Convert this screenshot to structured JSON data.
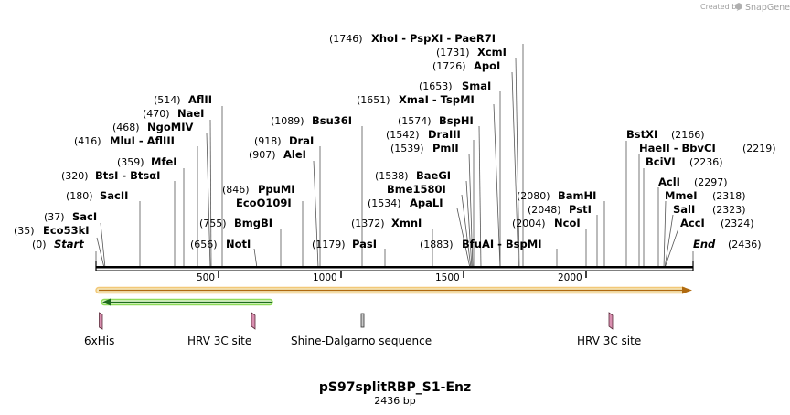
{
  "credit": {
    "prefix": "Created by",
    "brand": "SnapGene"
  },
  "plasmid": {
    "name": "pS97splitRBP_S1-Enz",
    "size_label": "2436 bp",
    "length": 2436
  },
  "axis": {
    "ticks": [
      500,
      1000,
      1500,
      2000
    ]
  },
  "sites": [
    {
      "pos": "(0)",
      "name": "Start",
      "bp": 0,
      "italic": true
    },
    {
      "pos": "(35)",
      "name": "Eco53kI",
      "bp": 35
    },
    {
      "pos": "(37)",
      "name": "SacI",
      "bp": 37
    },
    {
      "pos": "(180)",
      "name": "SacII",
      "bp": 180
    },
    {
      "pos": "(320)",
      "name": "BtsI - BtsαI",
      "bp": 320
    },
    {
      "pos": "(359)",
      "name": "MfeI",
      "bp": 359
    },
    {
      "pos": "(416)",
      "name": "MluI - AflIII",
      "bp": 416
    },
    {
      "pos": "(468)",
      "name": "NgoMIV",
      "bp": 468
    },
    {
      "pos": "(470)",
      "name": "NaeI",
      "bp": 470
    },
    {
      "pos": "(514)",
      "name": "AflII",
      "bp": 514
    },
    {
      "pos": "(656)",
      "name": "NotI",
      "bp": 656
    },
    {
      "pos": "(755)",
      "name": "BmgBI",
      "bp": 755
    },
    {
      "pos": "(846)",
      "name": "PpuMI",
      "bp": 846
    },
    {
      "pos": "",
      "name": "EcoO109I",
      "bp": 846
    },
    {
      "pos": "(907)",
      "name": "AleI",
      "bp": 907
    },
    {
      "pos": "(918)",
      "name": "DraI",
      "bp": 918
    },
    {
      "pos": "(1089)",
      "name": "Bsu36I",
      "bp": 1089
    },
    {
      "pos": "(1179)",
      "name": "PasI",
      "bp": 1179
    },
    {
      "pos": "(1372)",
      "name": "XmnI",
      "bp": 1372
    },
    {
      "pos": "(1534)",
      "name": "ApaLI",
      "bp": 1534
    },
    {
      "pos": "",
      "name": "Bme1580I",
      "bp": 1538
    },
    {
      "pos": "(1538)",
      "name": "BaeGI",
      "bp": 1538
    },
    {
      "pos": "(1539)",
      "name": "PmlI",
      "bp": 1539
    },
    {
      "pos": "(1542)",
      "name": "DraIII",
      "bp": 1542
    },
    {
      "pos": "(1574)",
      "name": "BspHI",
      "bp": 1574
    },
    {
      "pos": "(1651)",
      "name": "XmaI - TspMI",
      "bp": 1651
    },
    {
      "pos": "(1653)",
      "name": "SmaI",
      "bp": 1653
    },
    {
      "pos": "(1726)",
      "name": "ApoI",
      "bp": 1726
    },
    {
      "pos": "(1731)",
      "name": "XcmI",
      "bp": 1731
    },
    {
      "pos": "(1746)",
      "name": "XhoI - PspXI - PaeR7I",
      "bp": 1746
    },
    {
      "pos": "(1883)",
      "name": "BfuAI - BspMI",
      "bp": 1883
    },
    {
      "pos": "(2004)",
      "name": "NcoI",
      "bp": 2004
    },
    {
      "pos": "(2048)",
      "name": "PstI",
      "bp": 2048
    },
    {
      "pos": "(2080)",
      "name": "BamHI",
      "bp": 2080
    },
    {
      "pos": "(2166)",
      "name": "BstXI",
      "bp": 2166
    },
    {
      "pos": "(2219)",
      "name": "HaeII - BbvCI",
      "bp": 2219
    },
    {
      "pos": "(2236)",
      "name": "BciVI",
      "bp": 2236
    },
    {
      "pos": "(2297)",
      "name": "AclI",
      "bp": 2297
    },
    {
      "pos": "(2318)",
      "name": "MmeI",
      "bp": 2318
    },
    {
      "pos": "(2323)",
      "name": "SalI",
      "bp": 2323
    },
    {
      "pos": "(2324)",
      "name": "AccI",
      "bp": 2324
    },
    {
      "pos": "(2436)",
      "name": "End",
      "bp": 2436,
      "italic": true
    }
  ],
  "features": [
    {
      "name": "6xHis"
    },
    {
      "name": "HRV 3C site"
    },
    {
      "name": "Shine-Dalgarno sequence"
    },
    {
      "name": "HRV 3C site"
    }
  ],
  "colors": {
    "orf_arrow": "#e8a020",
    "orf_fill": "#f5e6b8",
    "green_arrow": "#5cc52a",
    "feature_fill": "#d98fb0",
    "backbone": "#000000"
  }
}
